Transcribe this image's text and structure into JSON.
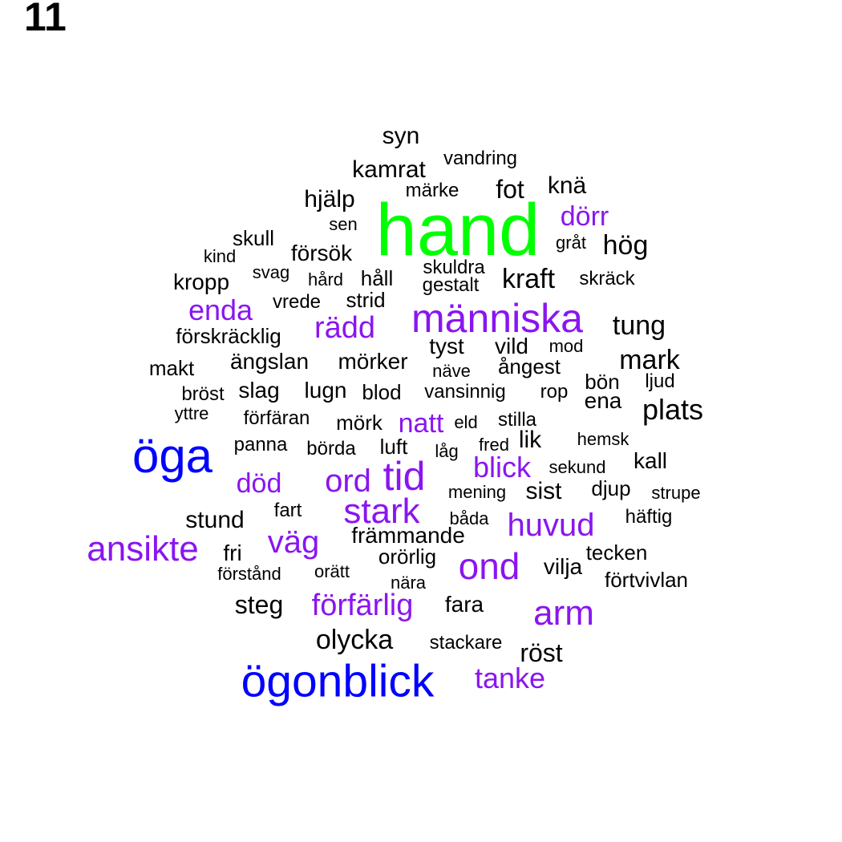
{
  "page_label": "11",
  "colors": {
    "black": "#000000",
    "purple": "#8a15f0",
    "blue": "#0000ff",
    "green": "#00ff00"
  },
  "words": [
    {
      "text": "hand",
      "color": "green"
    },
    {
      "text": "öga",
      "color": "blue"
    },
    {
      "text": "ögonblick",
      "color": "blue"
    },
    {
      "text": "människa",
      "color": "purple"
    },
    {
      "text": "ansikte",
      "color": "purple"
    },
    {
      "text": "arm",
      "color": "purple"
    },
    {
      "text": "ond",
      "color": "purple"
    },
    {
      "text": "stark",
      "color": "purple"
    },
    {
      "text": "tid",
      "color": "purple"
    },
    {
      "text": "huvud",
      "color": "purple"
    },
    {
      "text": "väg",
      "color": "purple"
    },
    {
      "text": "förfärlig",
      "color": "purple"
    },
    {
      "text": "ord",
      "color": "purple"
    },
    {
      "text": "rädd",
      "color": "purple"
    },
    {
      "text": "enda",
      "color": "purple"
    },
    {
      "text": "tanke",
      "color": "purple"
    },
    {
      "text": "blick",
      "color": "purple"
    },
    {
      "text": "död",
      "color": "purple"
    },
    {
      "text": "natt",
      "color": "purple"
    },
    {
      "text": "dörr",
      "color": "purple"
    },
    {
      "text": "syn",
      "color": "black"
    },
    {
      "text": "vandring",
      "color": "black"
    },
    {
      "text": "kamrat",
      "color": "black"
    },
    {
      "text": "märke",
      "color": "black"
    },
    {
      "text": "fot",
      "color": "black"
    },
    {
      "text": "knä",
      "color": "black"
    },
    {
      "text": "hjälp",
      "color": "black"
    },
    {
      "text": "sen",
      "color": "black"
    },
    {
      "text": "skull",
      "color": "black"
    },
    {
      "text": "gråt",
      "color": "black"
    },
    {
      "text": "hög",
      "color": "black"
    },
    {
      "text": "kind",
      "color": "black"
    },
    {
      "text": "försök",
      "color": "black"
    },
    {
      "text": "svag",
      "color": "black"
    },
    {
      "text": "skuldra",
      "color": "black"
    },
    {
      "text": "kropp",
      "color": "black"
    },
    {
      "text": "hård",
      "color": "black"
    },
    {
      "text": "håll",
      "color": "black"
    },
    {
      "text": "gestalt",
      "color": "black"
    },
    {
      "text": "kraft",
      "color": "black"
    },
    {
      "text": "skräck",
      "color": "black"
    },
    {
      "text": "vrede",
      "color": "black"
    },
    {
      "text": "strid",
      "color": "black"
    },
    {
      "text": "tung",
      "color": "black"
    },
    {
      "text": "förskräcklig",
      "color": "black"
    },
    {
      "text": "tyst",
      "color": "black"
    },
    {
      "text": "vild",
      "color": "black"
    },
    {
      "text": "mod",
      "color": "black"
    },
    {
      "text": "makt",
      "color": "black"
    },
    {
      "text": "ängslan",
      "color": "black"
    },
    {
      "text": "mörker",
      "color": "black"
    },
    {
      "text": "näve",
      "color": "black"
    },
    {
      "text": "ångest",
      "color": "black"
    },
    {
      "text": "mark",
      "color": "black"
    },
    {
      "text": "bön",
      "color": "black"
    },
    {
      "text": "ljud",
      "color": "black"
    },
    {
      "text": "bröst",
      "color": "black"
    },
    {
      "text": "slag",
      "color": "black"
    },
    {
      "text": "lugn",
      "color": "black"
    },
    {
      "text": "blod",
      "color": "black"
    },
    {
      "text": "vansinnig",
      "color": "black"
    },
    {
      "text": "rop",
      "color": "black"
    },
    {
      "text": "ena",
      "color": "black"
    },
    {
      "text": "yttre",
      "color": "black"
    },
    {
      "text": "förfäran",
      "color": "black"
    },
    {
      "text": "mörk",
      "color": "black"
    },
    {
      "text": "eld",
      "color": "black"
    },
    {
      "text": "stilla",
      "color": "black"
    },
    {
      "text": "plats",
      "color": "black"
    },
    {
      "text": "panna",
      "color": "black"
    },
    {
      "text": "börda",
      "color": "black"
    },
    {
      "text": "luft",
      "color": "black"
    },
    {
      "text": "låg",
      "color": "black"
    },
    {
      "text": "fred",
      "color": "black"
    },
    {
      "text": "lik",
      "color": "black"
    },
    {
      "text": "hemsk",
      "color": "black"
    },
    {
      "text": "sekund",
      "color": "black"
    },
    {
      "text": "kall",
      "color": "black"
    },
    {
      "text": "mening",
      "color": "black"
    },
    {
      "text": "sist",
      "color": "black"
    },
    {
      "text": "djup",
      "color": "black"
    },
    {
      "text": "strupe",
      "color": "black"
    },
    {
      "text": "stund",
      "color": "black"
    },
    {
      "text": "fart",
      "color": "black"
    },
    {
      "text": "båda",
      "color": "black"
    },
    {
      "text": "häftig",
      "color": "black"
    },
    {
      "text": "främmande",
      "color": "black"
    },
    {
      "text": "fri",
      "color": "black"
    },
    {
      "text": "orörlig",
      "color": "black"
    },
    {
      "text": "tecken",
      "color": "black"
    },
    {
      "text": "förstånd",
      "color": "black"
    },
    {
      "text": "orätt",
      "color": "black"
    },
    {
      "text": "nära",
      "color": "black"
    },
    {
      "text": "vilja",
      "color": "black"
    },
    {
      "text": "förtvivlan",
      "color": "black"
    },
    {
      "text": "steg",
      "color": "black"
    },
    {
      "text": "fara",
      "color": "black"
    },
    {
      "text": "olycka",
      "color": "black"
    },
    {
      "text": "stackare",
      "color": "black"
    },
    {
      "text": "röst",
      "color": "black"
    }
  ]
}
